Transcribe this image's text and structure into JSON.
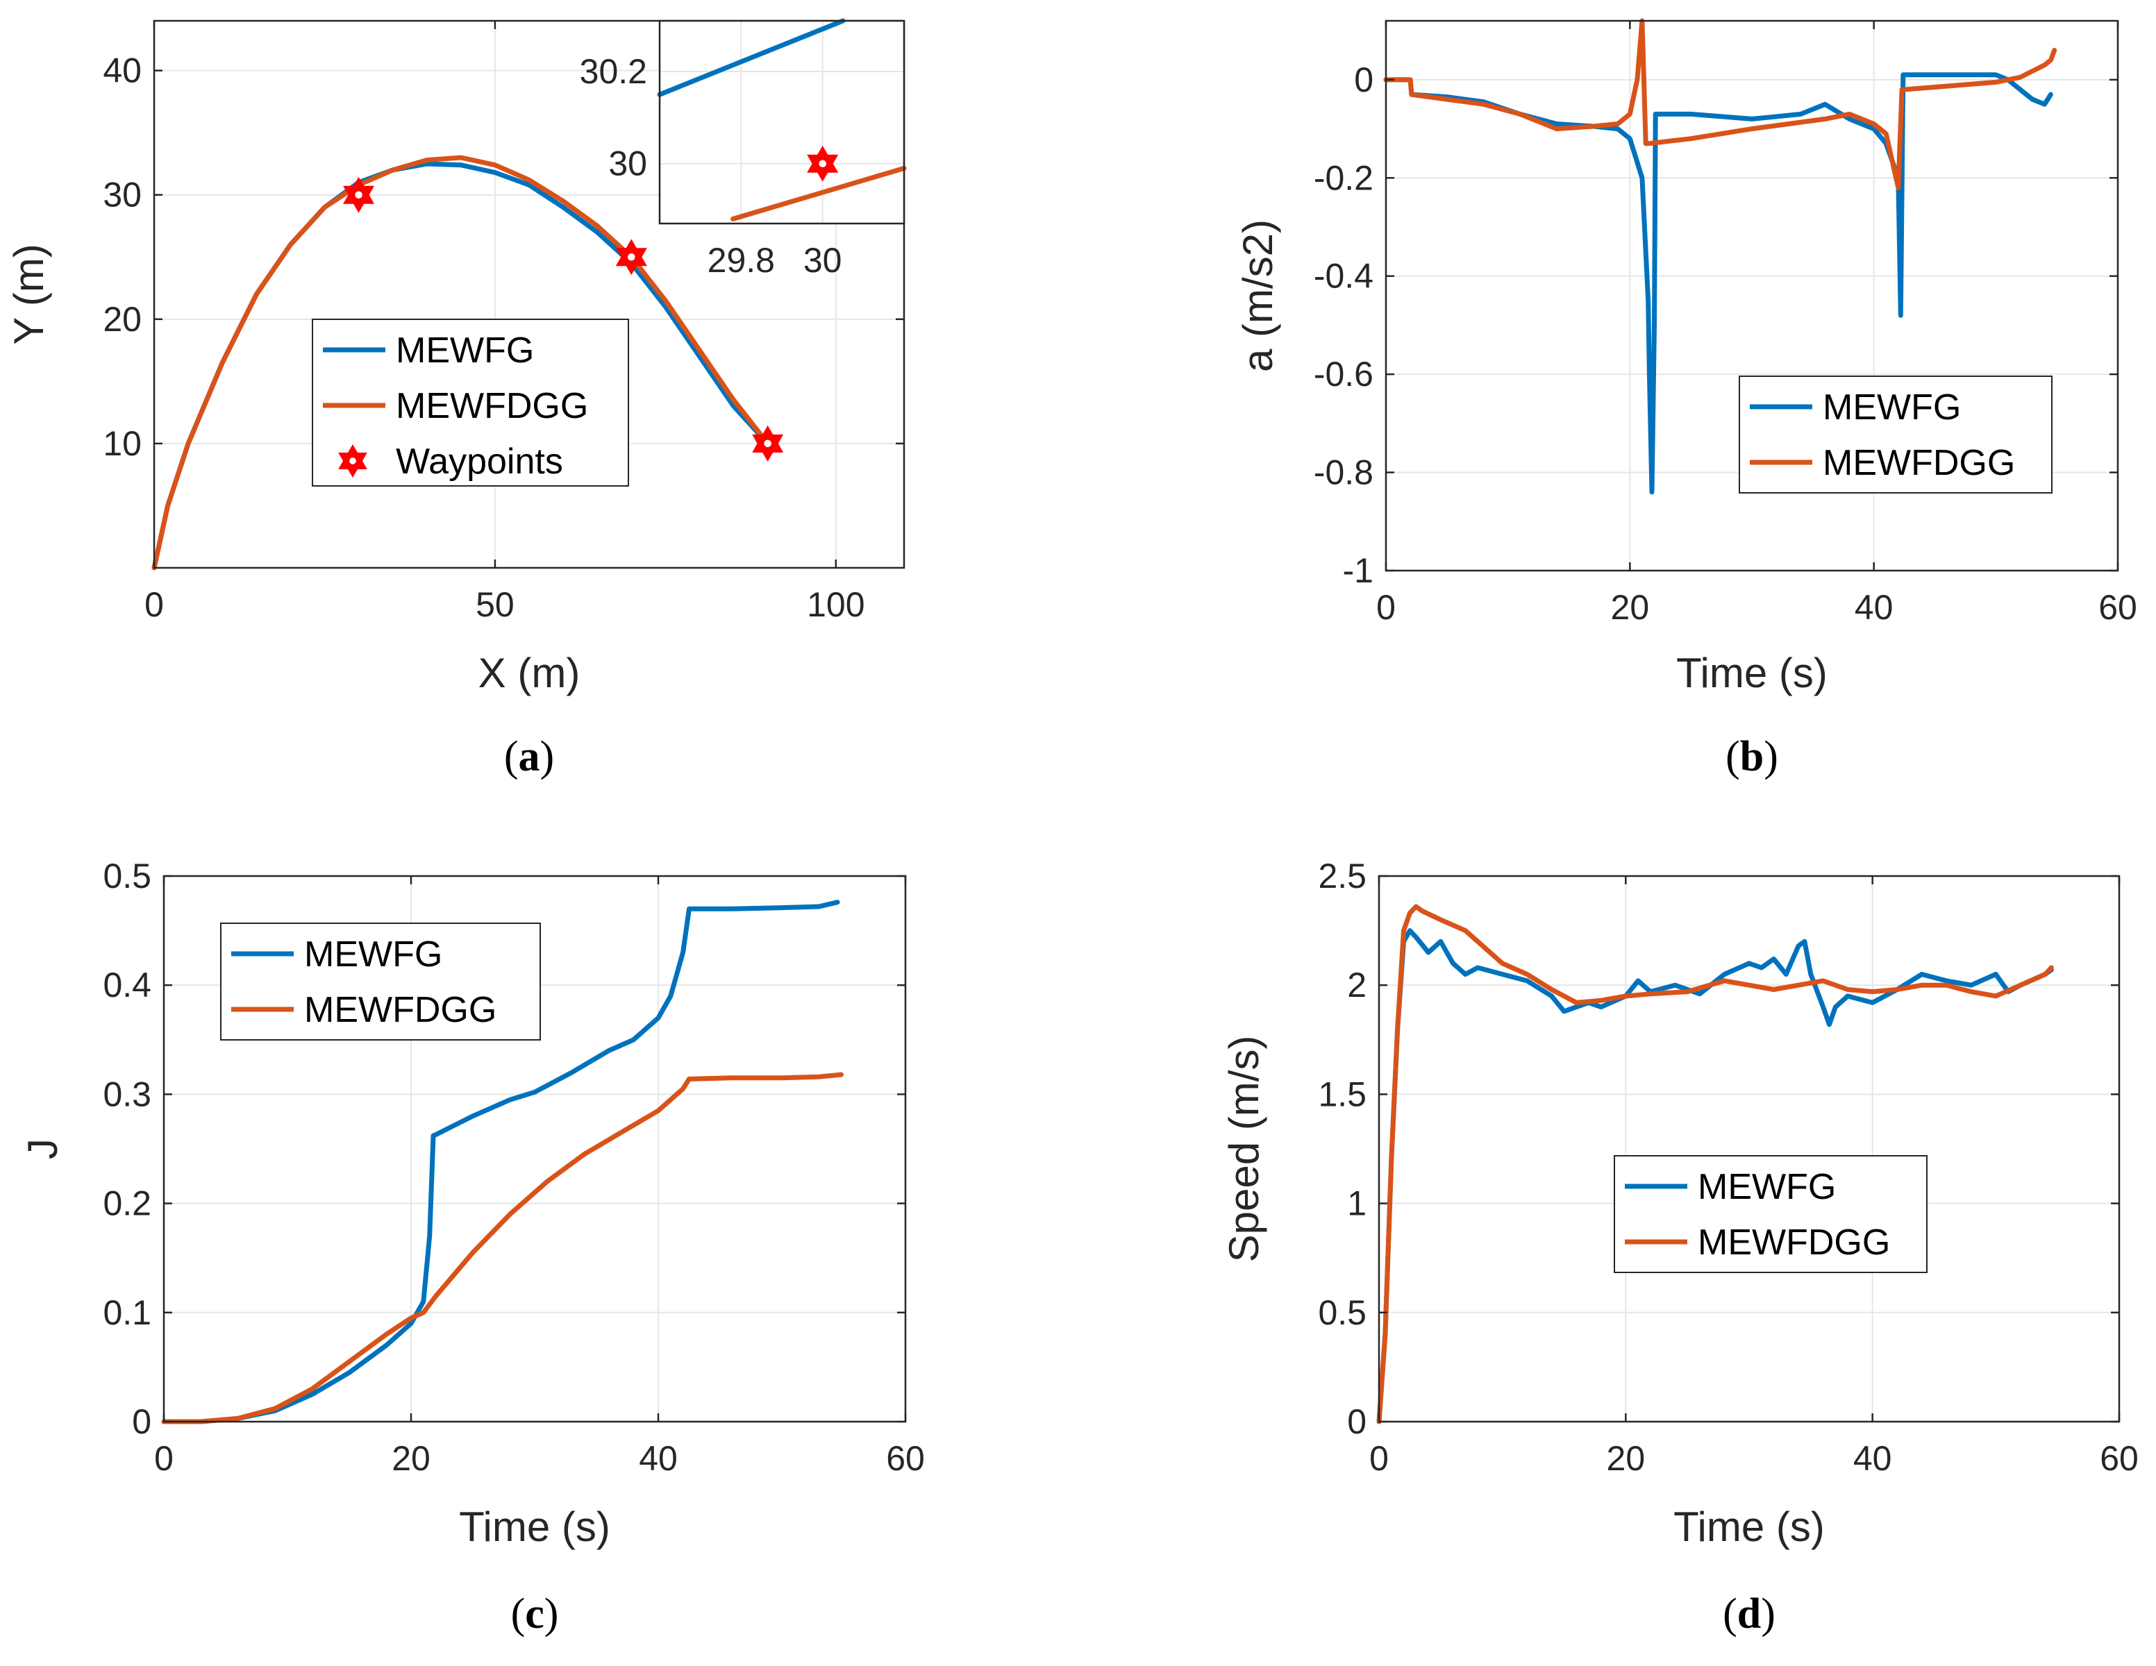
{
  "colors": {
    "mewfg": "#0072BD",
    "mewfdgg": "#D95319",
    "waypoint": "#FF0000"
  },
  "chart_data": [
    {
      "id": "a",
      "type": "line",
      "caption_letter": "a",
      "xlabel": "X (m)",
      "ylabel": "Y (m)",
      "xlim": [
        0,
        110
      ],
      "ylim": [
        0,
        44
      ],
      "xticks": [
        0,
        50,
        100
      ],
      "xtick_labels": [
        "0",
        "50",
        "100"
      ],
      "yticks": [
        10,
        20,
        30,
        40
      ],
      "ytick_labels": [
        "10",
        "20",
        "30",
        "40"
      ],
      "legend": {
        "position": "center",
        "entries": [
          "MEWFG",
          "MEWFDGG",
          "Waypoints"
        ]
      },
      "series": [
        {
          "name": "MEWFG",
          "color_key": "mewfg",
          "x": [
            0,
            2,
            5,
            10,
            15,
            20,
            25,
            30,
            35,
            40,
            45,
            50,
            55,
            60,
            65,
            70,
            75,
            80,
            85,
            90
          ],
          "y": [
            0,
            5,
            10,
            16.5,
            22,
            26,
            29,
            31,
            32,
            32.5,
            32.4,
            31.8,
            30.8,
            29,
            27,
            24.5,
            21,
            17,
            13,
            10
          ]
        },
        {
          "name": "MEWFDGG",
          "color_key": "mewfdgg",
          "x": [
            0,
            2,
            5,
            10,
            15,
            20,
            25,
            30,
            35,
            40,
            45,
            50,
            55,
            60,
            65,
            70,
            75,
            80,
            85,
            90
          ],
          "y": [
            0,
            5,
            10,
            16.5,
            22,
            26,
            29,
            30.8,
            32,
            32.8,
            33,
            32.4,
            31.2,
            29.5,
            27.5,
            25,
            21.5,
            17.5,
            13.5,
            10
          ]
        }
      ],
      "waypoints": {
        "name": "Waypoints",
        "x": [
          30,
          70,
          90
        ],
        "y": [
          30,
          25,
          10
        ]
      },
      "inset": {
        "xlim": [
          29.6,
          30.2
        ],
        "ylim": [
          29.87,
          30.31
        ],
        "xticks": [
          29.8,
          30
        ],
        "xtick_labels": [
          "29.8",
          "30"
        ],
        "yticks": [
          30,
          30.2
        ],
        "ytick_labels": [
          "30",
          "30.2"
        ],
        "series": [
          {
            "name": "MEWFG",
            "color_key": "mewfg",
            "x": [
              29.6,
              30.05
            ],
            "y": [
              30.15,
              30.31
            ]
          },
          {
            "name": "MEWFDGG",
            "color_key": "mewfdgg",
            "x": [
              29.78,
              30.2
            ],
            "y": [
              29.88,
              29.99
            ]
          }
        ],
        "waypoint": {
          "x": [
            30
          ],
          "y": [
            30
          ]
        }
      }
    },
    {
      "id": "b",
      "type": "line",
      "caption_letter": "b",
      "xlabel": "Time (s)",
      "ylabel": "a (m/s2)",
      "xlim": [
        0,
        60
      ],
      "ylim": [
        -1,
        0.12
      ],
      "xticks": [
        0,
        20,
        40,
        60
      ],
      "xtick_labels": [
        "0",
        "20",
        "40",
        "60"
      ],
      "yticks": [
        -1,
        -0.8,
        -0.6,
        -0.4,
        -0.2,
        0
      ],
      "ytick_labels": [
        "-1",
        "-0.8",
        "-0.6",
        "-0.4",
        "-0.2",
        "0"
      ],
      "legend": {
        "position": "right",
        "entries": [
          "MEWFG",
          "MEWFDGG"
        ]
      },
      "series": [
        {
          "name": "MEWFG",
          "color_key": "mewfg",
          "x": [
            0,
            2,
            2.1,
            5,
            8,
            11,
            14,
            17,
            19,
            20,
            21,
            21.5,
            21.6,
            21.8,
            22,
            22.1,
            25,
            30,
            34,
            36,
            38,
            40,
            41,
            42,
            42.2,
            42.4,
            42.6,
            45,
            50,
            51,
            53,
            54,
            54.5
          ],
          "y": [
            0,
            0,
            -0.03,
            -0.035,
            -0.045,
            -0.07,
            -0.09,
            -0.095,
            -0.1,
            -0.12,
            -0.2,
            -0.45,
            -0.6,
            -0.84,
            -0.5,
            -0.07,
            -0.07,
            -0.08,
            -0.07,
            -0.05,
            -0.08,
            -0.1,
            -0.13,
            -0.2,
            -0.48,
            0.01,
            0.01,
            0.01,
            0.01,
            0,
            -0.04,
            -0.05,
            -0.03
          ]
        },
        {
          "name": "MEWFDGG",
          "color_key": "mewfdgg",
          "x": [
            0,
            2,
            2.1,
            5,
            8,
            11,
            14,
            17,
            19,
            20,
            20.6,
            21,
            21.3,
            21.5,
            25,
            30,
            36,
            38,
            40,
            41,
            42,
            42.3,
            42.5,
            45,
            50,
            52,
            54,
            54.5,
            54.8
          ],
          "y": [
            0,
            0,
            -0.03,
            -0.04,
            -0.05,
            -0.07,
            -0.1,
            -0.095,
            -0.09,
            -0.07,
            0,
            0.12,
            -0.13,
            -0.13,
            -0.12,
            -0.1,
            -0.08,
            -0.07,
            -0.09,
            -0.11,
            -0.22,
            -0.02,
            -0.02,
            -0.015,
            -0.005,
            0.005,
            0.03,
            0.04,
            0.06
          ]
        }
      ]
    },
    {
      "id": "c",
      "type": "line",
      "caption_letter": "c",
      "xlabel": "Time (s)",
      "ylabel": "J",
      "xlim": [
        0,
        60
      ],
      "ylim": [
        0,
        0.5
      ],
      "xticks": [
        0,
        20,
        40,
        60
      ],
      "xtick_labels": [
        "0",
        "20",
        "40",
        "60"
      ],
      "yticks": [
        0,
        0.1,
        0.2,
        0.3,
        0.4,
        0.5
      ],
      "ytick_labels": [
        "0",
        "0.1",
        "0.2",
        "0.3",
        "0.4",
        "0.5"
      ],
      "legend": {
        "position": "top-left",
        "entries": [
          "MEWFG",
          "MEWFDGG"
        ]
      },
      "series": [
        {
          "name": "MEWFG",
          "color_key": "mewfg",
          "x": [
            0,
            3,
            6,
            9,
            12,
            15,
            18,
            20,
            21,
            21.5,
            21.8,
            22,
            25,
            28,
            30,
            33,
            36,
            38,
            40,
            41,
            42,
            42.5,
            43,
            46,
            50,
            53,
            54.5
          ],
          "y": [
            0,
            0,
            0.003,
            0.01,
            0.025,
            0.045,
            0.07,
            0.09,
            0.11,
            0.17,
            0.262,
            0.263,
            0.28,
            0.295,
            0.302,
            0.32,
            0.34,
            0.35,
            0.37,
            0.39,
            0.43,
            0.47,
            0.47,
            0.47,
            0.471,
            0.472,
            0.476
          ]
        },
        {
          "name": "MEWFDGG",
          "color_key": "mewfdgg",
          "x": [
            0,
            3,
            6,
            9,
            12,
            15,
            18,
            20,
            21,
            22,
            25,
            28,
            31,
            34,
            37,
            40,
            42,
            42.5,
            46,
            50,
            53,
            54.8
          ],
          "y": [
            0,
            0,
            0.003,
            0.012,
            0.03,
            0.055,
            0.08,
            0.095,
            0.1,
            0.115,
            0.155,
            0.19,
            0.22,
            0.245,
            0.265,
            0.285,
            0.305,
            0.314,
            0.315,
            0.315,
            0.316,
            0.318
          ]
        }
      ]
    },
    {
      "id": "d",
      "type": "line",
      "caption_letter": "d",
      "xlabel": "Time (s)",
      "ylabel": "Speed (m/s)",
      "xlim": [
        0,
        60
      ],
      "ylim": [
        0,
        2.5
      ],
      "xticks": [
        0,
        20,
        40,
        60
      ],
      "xtick_labels": [
        "0",
        "20",
        "40",
        "60"
      ],
      "yticks": [
        0,
        0.5,
        1,
        1.5,
        2,
        2.5
      ],
      "ytick_labels": [
        "0",
        "0.5",
        "1",
        "1.5",
        "2",
        "2.5"
      ],
      "legend": {
        "position": "center",
        "entries": [
          "MEWFG",
          "MEWFDGG"
        ]
      },
      "series": [
        {
          "name": "MEWFG",
          "color_key": "mewfg",
          "x": [
            0,
            0.5,
            1,
            1.5,
            2,
            2.5,
            3,
            4,
            5,
            6,
            7,
            8,
            10,
            12,
            14,
            15,
            16,
            17,
            18,
            20,
            21,
            22,
            24,
            26,
            28,
            30,
            31,
            32,
            33,
            34,
            34.5,
            35,
            36,
            36.5,
            37,
            38,
            40,
            42,
            44,
            46,
            48,
            50,
            51,
            52,
            54,
            54.5
          ],
          "y": [
            0,
            0.4,
            1.2,
            1.8,
            2.2,
            2.25,
            2.22,
            2.15,
            2.2,
            2.1,
            2.05,
            2.08,
            2.05,
            2.02,
            1.95,
            1.88,
            1.9,
            1.92,
            1.9,
            1.95,
            2.02,
            1.97,
            2.0,
            1.96,
            2.05,
            2.1,
            2.08,
            2.12,
            2.05,
            2.18,
            2.2,
            2.05,
            1.9,
            1.82,
            1.9,
            1.95,
            1.92,
            1.98,
            2.05,
            2.02,
            2.0,
            2.05,
            1.97,
            2.0,
            2.05,
            2.07
          ]
        },
        {
          "name": "MEWFDGG",
          "color_key": "mewfdgg",
          "x": [
            0,
            0.5,
            1,
            1.5,
            2,
            2.5,
            3,
            3.5,
            5,
            7,
            8,
            10,
            12,
            14,
            16,
            18,
            20,
            22,
            25,
            28,
            30,
            32,
            34,
            36,
            38,
            40,
            42,
            44,
            46,
            48,
            50,
            52,
            54,
            54.5
          ],
          "y": [
            0,
            0.4,
            1.2,
            1.8,
            2.25,
            2.33,
            2.36,
            2.34,
            2.3,
            2.25,
            2.2,
            2.1,
            2.05,
            1.98,
            1.92,
            1.93,
            1.95,
            1.96,
            1.97,
            2.02,
            2.0,
            1.98,
            2.0,
            2.02,
            1.98,
            1.97,
            1.98,
            2.0,
            2.0,
            1.97,
            1.95,
            2.0,
            2.05,
            2.08
          ]
        }
      ]
    }
  ]
}
